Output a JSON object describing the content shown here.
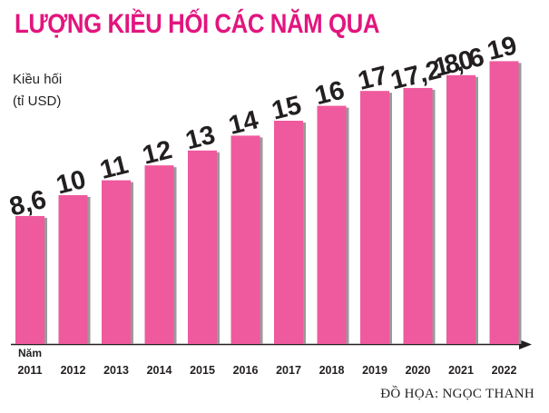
{
  "header": {
    "title": "LƯỢNG KIỀU HỐI CÁC NĂM QUA"
  },
  "credit": "ĐỒ HỌA: NGỌC THANH",
  "colors": {
    "title": "#e2157e",
    "bar": "#ef5a9e",
    "bar_shadow": "#9a9a9a",
    "text": "#231f20"
  },
  "chart_data": {
    "type": "bar",
    "title": "LƯỢNG KIỀU HỐI CÁC NĂM QUA",
    "ylabel_line1": "Kiều hối",
    "ylabel_line2": "(tỉ USD)",
    "xlabel": "Năm",
    "grid": false,
    "ylim": [
      0,
      20
    ],
    "categories": [
      "2011",
      "2012",
      "2013",
      "2014",
      "2015",
      "2016",
      "2017",
      "2018",
      "2019",
      "2020",
      "2021",
      "2022"
    ],
    "values": [
      8.6,
      10,
      11,
      12,
      13,
      14,
      15,
      16,
      17,
      17.2,
      18.06,
      19
    ],
    "labels": [
      "8,6",
      "10",
      "11",
      "12",
      "13",
      "14",
      "15",
      "16",
      "17",
      "17,2",
      "18,06",
      "19"
    ]
  }
}
